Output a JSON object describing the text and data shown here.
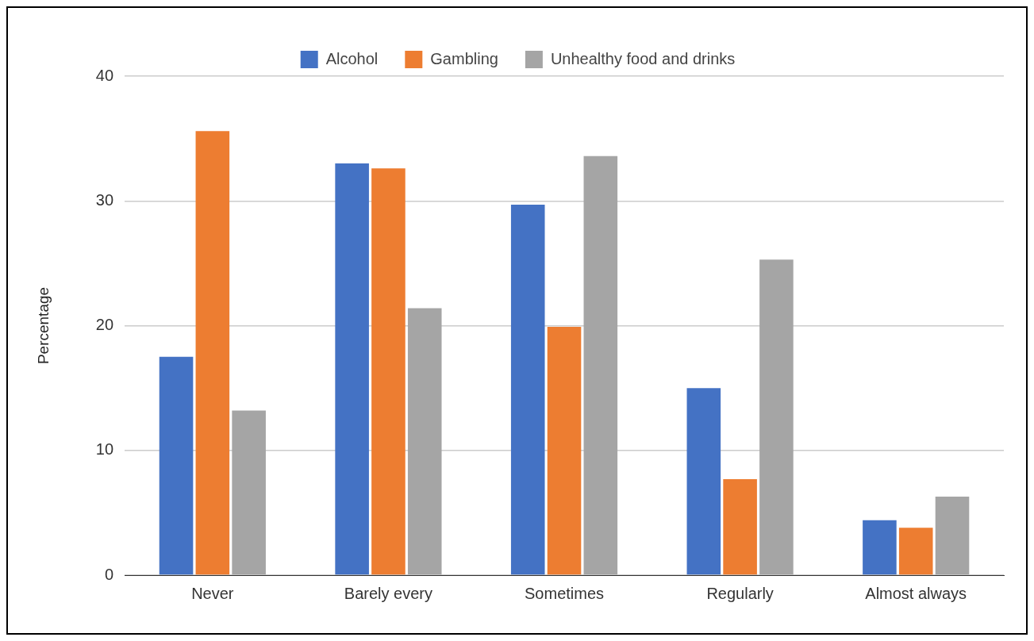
{
  "chart_data": {
    "type": "bar",
    "ylabel": "Percentage",
    "categories": [
      "Never",
      "Barely every",
      "Sometimes",
      "Regularly",
      "Almost always"
    ],
    "series": [
      {
        "name": "Alcohol",
        "color": "#4472c4",
        "values": [
          17.5,
          33.0,
          29.7,
          15.0,
          4.4
        ]
      },
      {
        "name": "Gambling",
        "color": "#ed7d31",
        "values": [
          35.6,
          32.6,
          19.9,
          7.7,
          3.8
        ]
      },
      {
        "name": "Unhealthy food and drinks",
        "color": "#a5a5a5",
        "values": [
          13.2,
          21.4,
          33.6,
          25.3,
          6.3
        ]
      }
    ],
    "ylim": [
      0,
      40
    ],
    "yticks": [
      0,
      10,
      20,
      30,
      40
    ],
    "grid": "y",
    "legend": "top"
  }
}
